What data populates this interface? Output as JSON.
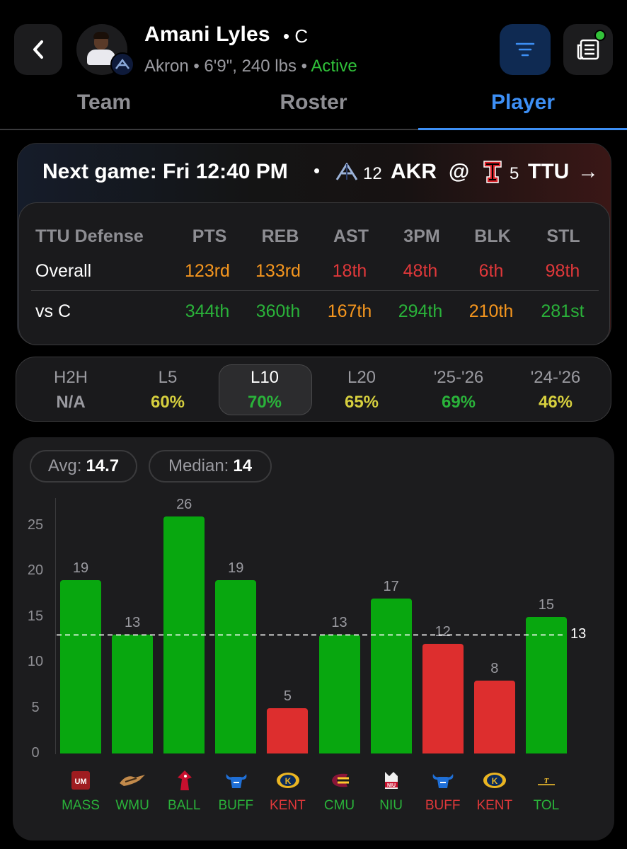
{
  "colors": {
    "green": "#2ab33a",
    "greenBar": "#08a70f",
    "red": "#e0383a",
    "redBar": "#dd2e2e",
    "orange": "#f5961e",
    "yellow": "#d6cf3e",
    "blue": "#3d8ff5"
  },
  "header": {
    "name": "Amani Lyles",
    "position": "• C",
    "sub_info": "Akron • 6'9\", 240 lbs •",
    "status": "Active"
  },
  "tabs": [
    "Team",
    "Roster",
    "Player"
  ],
  "next_game": {
    "label": "Next game: Fri 12:40 PM",
    "separator": "•",
    "home_rank": "12",
    "home": "AKR",
    "at": "@",
    "away_rank": "5",
    "away": "TTU",
    "arrow": "→"
  },
  "defense": {
    "title": "TTU Defense",
    "columns": [
      "PTS",
      "REB",
      "AST",
      "3PM",
      "BLK",
      "STL"
    ],
    "rows": [
      {
        "label": "Overall",
        "values": [
          "123rd",
          "133rd",
          "18th",
          "48th",
          "6th",
          "98th"
        ],
        "tone": [
          "orange",
          "orange",
          "red",
          "red",
          "red",
          "red"
        ]
      },
      {
        "label": "vs C",
        "values": [
          "344th",
          "360th",
          "167th",
          "294th",
          "210th",
          "281st"
        ],
        "tone": [
          "green",
          "green",
          "orange",
          "green",
          "orange",
          "green"
        ]
      }
    ]
  },
  "splits": [
    {
      "label": "H2H",
      "value": "N/A",
      "tone": "gray"
    },
    {
      "label": "L5",
      "value": "60%",
      "tone": "yellow"
    },
    {
      "label": "L10",
      "value": "70%",
      "tone": "green"
    },
    {
      "label": "L20",
      "value": "65%",
      "tone": "yellow"
    },
    {
      "label": "'25-'26",
      "value": "69%",
      "tone": "green"
    },
    {
      "label": "'24-'26",
      "value": "46%",
      "tone": "yellow"
    }
  ],
  "stats": {
    "avg_label": "Avg:",
    "avg": "14.7",
    "median_label": "Median:",
    "median": "14"
  },
  "chart_data": {
    "type": "bar",
    "title": "",
    "categories": [
      "MASS",
      "WMU",
      "BALL",
      "BUFF",
      "KENT",
      "CMU",
      "NIU",
      "BUFF",
      "KENT",
      "TOL"
    ],
    "values": [
      19,
      13,
      26,
      19,
      5,
      13,
      17,
      12,
      8,
      15
    ],
    "line": 13,
    "line_label": "13",
    "ylim": [
      0,
      28
    ],
    "yticks": [
      0,
      5,
      10,
      15,
      20,
      25
    ],
    "xlabel": "",
    "ylabel": ""
  },
  "opponents": [
    {
      "abbr": "MASS",
      "icon": "umass-logo"
    },
    {
      "abbr": "WMU",
      "icon": "wmu-logo"
    },
    {
      "abbr": "BALL",
      "icon": "ball-state-logo"
    },
    {
      "abbr": "BUFF",
      "icon": "buffalo-logo"
    },
    {
      "abbr": "KENT",
      "icon": "kent-logo"
    },
    {
      "abbr": "CMU",
      "icon": "cmu-logo"
    },
    {
      "abbr": "NIU",
      "icon": "niu-logo"
    },
    {
      "abbr": "BUFF",
      "icon": "buffalo-logo"
    },
    {
      "abbr": "KENT",
      "icon": "kent-logo"
    },
    {
      "abbr": "TOL",
      "icon": "toledo-logo"
    }
  ]
}
